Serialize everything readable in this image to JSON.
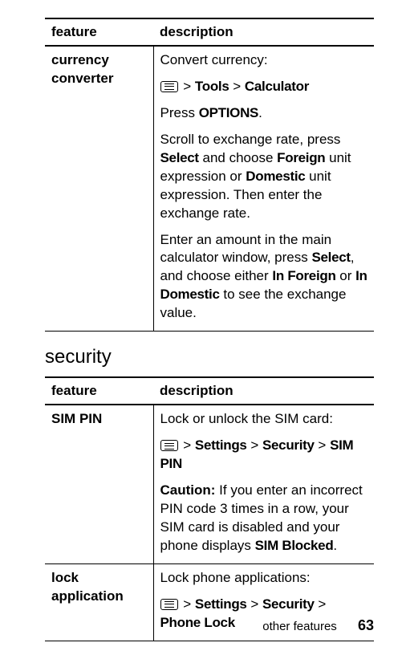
{
  "table1": {
    "headers": {
      "feature": "feature",
      "description": "description"
    },
    "row": {
      "feature": "currency converter",
      "p1_pre": "Convert currency:",
      "nav": {
        "tools": "Tools",
        "calculator": "Calculator"
      },
      "p2_a": "Press ",
      "p2_b": "OPTIONS",
      "p2_c": ".",
      "p3_a": "Scroll to exchange rate, press ",
      "p3_b": "Select",
      "p3_c": " and choose ",
      "p3_d": "Foreign",
      "p3_e": " unit expression or ",
      "p3_f": "Domestic",
      "p3_g": " unit expression. Then enter the exchange rate.",
      "p4_a": "Enter an amount in the main calculator window, press ",
      "p4_b": "Select",
      "p4_c": ", and choose either ",
      "p4_d": "In Foreign",
      "p4_e": " or ",
      "p4_f": "In Domestic",
      "p4_g": " to see the exchange value."
    }
  },
  "section_title": "security",
  "table2": {
    "headers": {
      "feature": "feature",
      "description": "description"
    },
    "rows": [
      {
        "feature": "SIM PIN",
        "p1": "Lock or unlock the SIM card:",
        "nav": {
          "settings": "Settings",
          "security": "Security",
          "simpin": "SIM PIN"
        },
        "p2_a": "Caution:",
        "p2_b": " If you enter an incorrect PIN code 3 times in a row, your SIM card is disabled and your phone displays ",
        "p2_c": "SIM Blocked",
        "p2_d": "."
      },
      {
        "feature": "lock application",
        "p1": "Lock phone applications:",
        "nav": {
          "settings": "Settings",
          "security": "Security",
          "phonelock": "Phone Lock"
        }
      }
    ]
  },
  "footer": {
    "label": "other features",
    "page": "63"
  },
  "gt": ">"
}
